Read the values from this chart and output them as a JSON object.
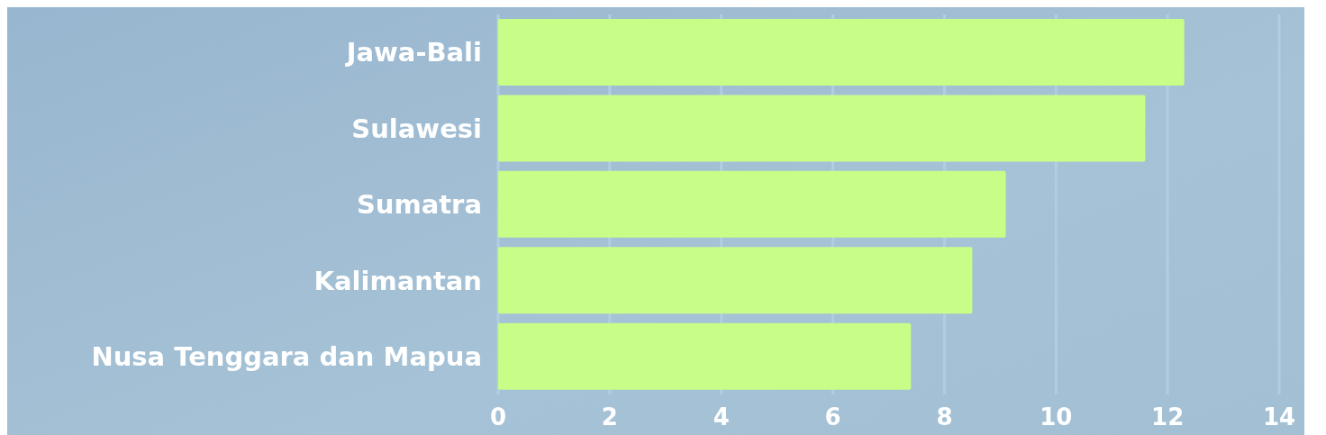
{
  "chart_data": {
    "type": "bar",
    "orientation": "horizontal",
    "categories": [
      "Jawa-Bali",
      "Sulawesi",
      "Sumatra",
      "Kalimantan",
      "Nusa Tenggara dan Mapua"
    ],
    "values": [
      12.3,
      11.6,
      9.1,
      8.5,
      7.4
    ],
    "color": "#c8fd88",
    "xlim": [
      0,
      14
    ],
    "xticks": [
      0,
      2,
      4,
      6,
      8,
      10,
      12,
      14
    ],
    "grid": "x"
  }
}
